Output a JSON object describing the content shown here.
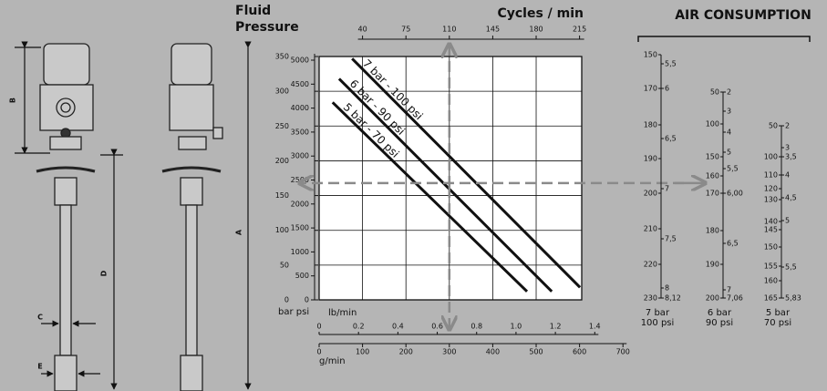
{
  "pump": {
    "dimension_labels": [
      "B",
      "A",
      "D",
      "C",
      "E"
    ]
  },
  "performance": {
    "pressure_title": [
      "Fluid",
      "Pressure"
    ],
    "cycles_title": "Cycles / min",
    "cycles_ticks": [
      40,
      75,
      110,
      145,
      180,
      215
    ],
    "pressure_units": "bar psi",
    "bar_ticks": [
      0,
      50,
      100,
      150,
      200,
      250,
      300,
      350
    ],
    "psi_ticks": [
      0,
      500,
      1000,
      1500,
      2000,
      2500,
      3000,
      3500,
      4000,
      4500,
      5000
    ],
    "lbmin_title": "lb/min",
    "lbmin_ticks": [
      0,
      0.2,
      0.4,
      0.6,
      0.8,
      {
        "value": 1,
        "label": "1.0"
      },
      1.2,
      1.4
    ],
    "gmin_title": "g/min",
    "gmin_ticks": [
      0,
      100,
      200,
      300,
      400,
      500,
      600,
      700
    ],
    "xlim": [
      0,
      605
    ],
    "ylim": [
      0,
      350
    ],
    "grid_x": [
      100,
      200,
      300,
      400,
      500
    ],
    "grid_y": [
      50,
      100,
      150,
      200,
      250,
      300
    ],
    "lines": [
      {
        "name": "7 bar - 100 psi",
        "x": [
          76,
          601
        ],
        "y": [
          347,
          18
        ]
      },
      {
        "name": "6 bar - 90 psi",
        "x": [
          46,
          536
        ],
        "y": [
          318,
          12
        ]
      },
      {
        "name": "5 bar - 70 psi",
        "x": [
          31,
          479
        ],
        "y": [
          284,
          12
        ]
      }
    ],
    "reading": {
      "flow": 300,
      "pressure": 168
    }
  },
  "air_consumption": {
    "title": "AIR CONSUMPTION",
    "scales": [
      {
        "left": [
          150,
          170,
          180,
          190,
          200,
          210,
          220,
          230
        ],
        "right": [
          "5,5",
          "6",
          "6,5",
          "7",
          "7,5",
          "8",
          "8,12"
        ],
        "label": [
          "7 bar",
          "100 psi"
        ]
      },
      {
        "left": [
          50,
          100,
          150,
          160,
          170,
          180,
          190,
          200
        ],
        "right": [
          "2",
          "3",
          "4",
          "5",
          "5,5",
          "6,00",
          "6,5",
          "7",
          "7,06"
        ],
        "label": [
          "6 bar",
          "90 psi"
        ]
      },
      {
        "left": [
          50,
          100,
          110,
          120,
          130,
          140,
          145,
          150,
          155,
          160,
          165
        ],
        "right": [
          "2",
          "3",
          "3,5",
          "4",
          "4,5",
          "5",
          "5,5",
          "5,83"
        ],
        "label": [
          "5 bar",
          "70 psi"
        ]
      }
    ]
  }
}
